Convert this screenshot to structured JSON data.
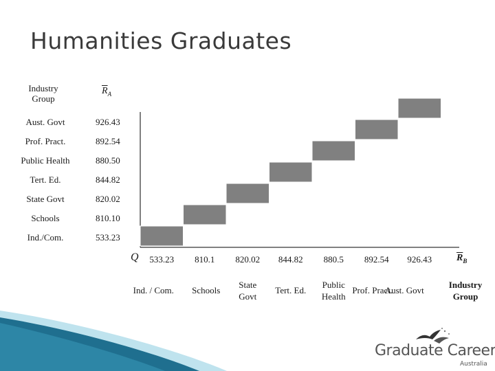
{
  "title": "Humanities Graduates",
  "table": {
    "col_group": "Industry Group",
    "col_r": "R",
    "col_r_sub": "A",
    "rows": [
      {
        "label": "Aust. Govt",
        "value": "926.43"
      },
      {
        "label": "Prof. Pract.",
        "value": "892.54"
      },
      {
        "label": "Public Health",
        "value": "880.50"
      },
      {
        "label": "Tert. Ed.",
        "value": "844.82"
      },
      {
        "label": "State Govt",
        "value": "820.02"
      },
      {
        "label": "Schools",
        "value": "810.10"
      },
      {
        "label": "Ind./Com.",
        "value": "533.23"
      }
    ]
  },
  "axis": {
    "y_symbol": "Q",
    "x_symbol": "R",
    "x_symbol_sub": "B",
    "x_group_label": "Industry Group"
  },
  "colors": {
    "bar": "#808080",
    "bar_edge": "#ffffff",
    "axis": "#000000",
    "swoosh_dark": "#1f6f8f",
    "swoosh_light": "#bfe3ee"
  },
  "logo": {
    "name": "Graduate Careers",
    "sub": "Australia"
  },
  "chart_data": {
    "type": "bar",
    "subtype": "step",
    "ordinal_x": true,
    "categories": [
      "Ind. / Com.",
      "Schools",
      "State Govt",
      "Tert. Ed.",
      "Public Health",
      "Prof. Pract.",
      "Aust. Govt"
    ],
    "tick_labels": [
      "533.23",
      "810.1",
      "820.02",
      "844.82",
      "880.5",
      "892.54",
      "926.43"
    ],
    "values": [
      533.23,
      810.1,
      820.02,
      844.82,
      880.5,
      892.54,
      926.43
    ],
    "step_levels": [
      1,
      2,
      3,
      4,
      5,
      6,
      7
    ],
    "grid": false,
    "legend": "none"
  }
}
